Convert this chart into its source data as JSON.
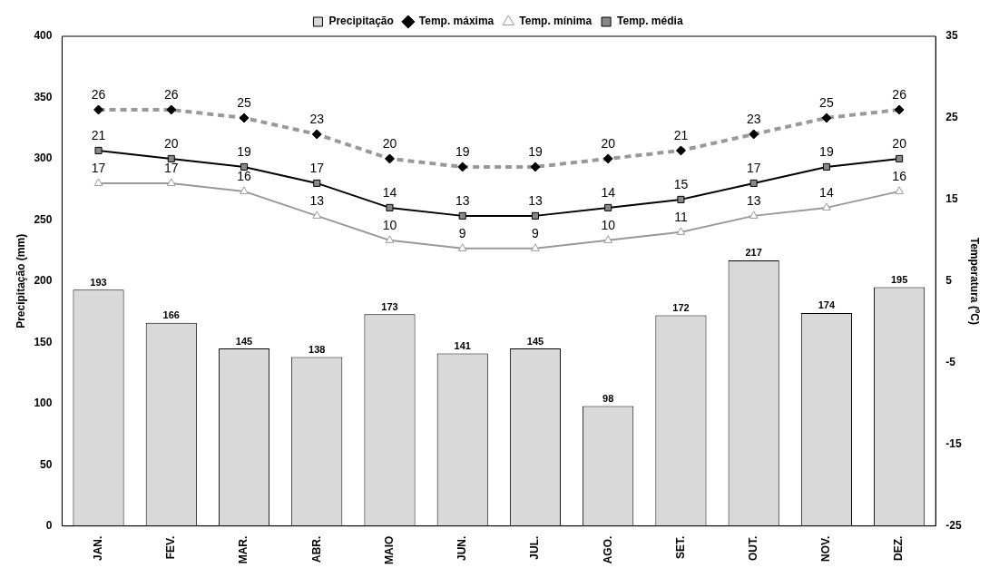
{
  "chart_data": {
    "type": "bar",
    "categories": [
      "JAN.",
      "FEV.",
      "MAR.",
      "ABR.",
      "MAIO",
      "JUN.",
      "JUL.",
      "AGO.",
      "SET.",
      "OUT.",
      "NOV.",
      "DEZ."
    ],
    "ylabel": "Precipitação (mm)",
    "y2label": "Temperatura (ºC)",
    "ylim": [
      0,
      400
    ],
    "yticks": [
      0,
      50,
      100,
      150,
      200,
      250,
      300,
      350,
      400
    ],
    "y2lim": [
      -25,
      35
    ],
    "y2ticks": [
      -25,
      -15,
      -5,
      5,
      15,
      25,
      35
    ],
    "grid": false,
    "legend": "top",
    "data_labels": true,
    "series": [
      {
        "name": "Precipitação",
        "type": "bar",
        "color": "#d9d9d9",
        "values": [
          193,
          166,
          145,
          138,
          173,
          141,
          145,
          98,
          172,
          217,
          174,
          195
        ]
      },
      {
        "name": "Temp. máxima",
        "type": "line",
        "axis": "y2",
        "color": "#999999",
        "marker": "diamond",
        "line_style": "dashed",
        "values": [
          26,
          26,
          25,
          23,
          20,
          19,
          19,
          20,
          21,
          23,
          25,
          26
        ]
      },
      {
        "name": "Temp. mínima",
        "type": "line",
        "axis": "y2",
        "color": "#999999",
        "marker": "triangle",
        "line_style": "solid",
        "values": [
          17,
          17,
          16,
          13,
          10,
          9,
          9,
          10,
          11,
          13,
          14,
          16
        ]
      },
      {
        "name": "Temp. média",
        "type": "line",
        "axis": "y2",
        "color": "#000000",
        "marker": "square",
        "line_style": "solid",
        "values": [
          21,
          20,
          19,
          17,
          14,
          13,
          13,
          14,
          15,
          17,
          19,
          20
        ]
      }
    ]
  }
}
